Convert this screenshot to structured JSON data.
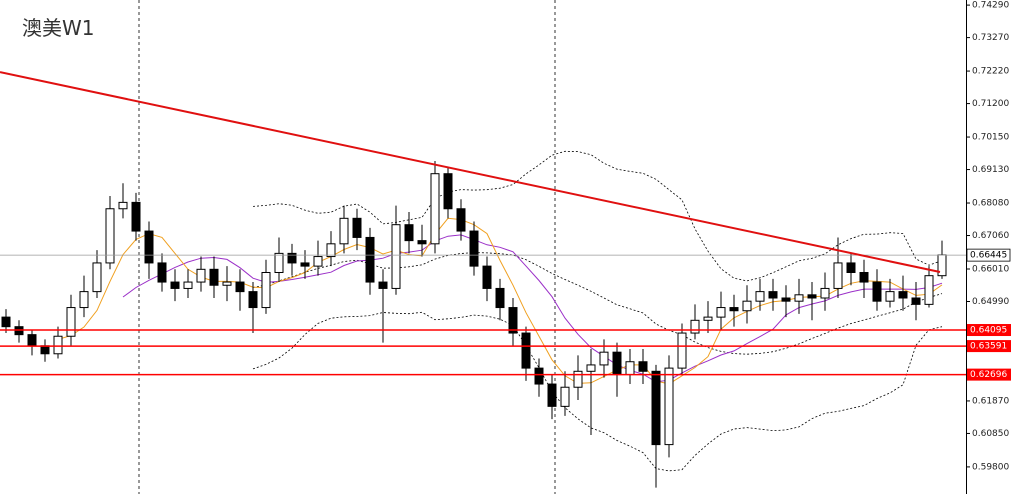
{
  "chart_data": {
    "type": "candlestick",
    "title": "澳美W1",
    "open": [
      0.645,
      0.642,
      0.6395,
      0.636,
      0.6335,
      0.639,
      0.648,
      0.653,
      0.662,
      0.679,
      0.681,
      0.672,
      0.662,
      0.656,
      0.654,
      0.656,
      0.66,
      0.655,
      0.656,
      0.653,
      0.648,
      0.659,
      0.665,
      0.662,
      0.661,
      0.664,
      0.668,
      0.676,
      0.67,
      0.656,
      0.654,
      0.674,
      0.669,
      0.668,
      0.69,
      0.679,
      0.672,
      0.661,
      0.654,
      0.648,
      0.64,
      0.629,
      0.624,
      0.617,
      0.623,
      0.628,
      0.63,
      0.634,
      0.627,
      0.631,
      0.628,
      0.605,
      0.629,
      0.64,
      0.644,
      0.645,
      0.648,
      0.647,
      0.65,
      0.653,
      0.651,
      0.65,
      0.652,
      0.651,
      0.654,
      0.662,
      0.659,
      0.656,
      0.65,
      0.653,
      0.651,
      0.649,
      0.658
    ],
    "high": [
      0.6475,
      0.644,
      0.641,
      0.638,
      0.642,
      0.652,
      0.658,
      0.666,
      0.683,
      0.687,
      0.684,
      0.675,
      0.665,
      0.66,
      0.66,
      0.664,
      0.664,
      0.661,
      0.66,
      0.656,
      0.663,
      0.67,
      0.668,
      0.666,
      0.669,
      0.672,
      0.68,
      0.679,
      0.673,
      0.66,
      0.68,
      0.678,
      0.674,
      0.694,
      0.692,
      0.682,
      0.675,
      0.664,
      0.657,
      0.651,
      0.642,
      0.632,
      0.627,
      0.628,
      0.633,
      0.635,
      0.638,
      0.637,
      0.635,
      0.635,
      0.63,
      0.633,
      0.643,
      0.649,
      0.65,
      0.653,
      0.652,
      0.655,
      0.657,
      0.657,
      0.655,
      0.657,
      0.656,
      0.659,
      0.67,
      0.665,
      0.663,
      0.66,
      0.657,
      0.658,
      0.656,
      0.661,
      0.669
    ],
    "low": [
      0.64,
      0.637,
      0.633,
      0.631,
      0.632,
      0.636,
      0.645,
      0.651,
      0.66,
      0.676,
      0.669,
      0.657,
      0.653,
      0.65,
      0.651,
      0.653,
      0.651,
      0.65,
      0.647,
      0.64,
      0.646,
      0.656,
      0.658,
      0.657,
      0.658,
      0.661,
      0.665,
      0.666,
      0.652,
      0.637,
      0.652,
      0.665,
      0.664,
      0.665,
      0.676,
      0.669,
      0.658,
      0.65,
      0.644,
      0.636,
      0.625,
      0.62,
      0.613,
      0.614,
      0.619,
      0.608,
      0.626,
      0.62,
      0.624,
      0.624,
      0.5915,
      0.601,
      0.627,
      0.638,
      0.64,
      0.641,
      0.642,
      0.643,
      0.647,
      0.647,
      0.645,
      0.646,
      0.644,
      0.647,
      0.651,
      0.655,
      0.651,
      0.647,
      0.648,
      0.647,
      0.644,
      0.648,
      0.657
    ],
    "close": [
      0.642,
      0.6395,
      0.636,
      0.6335,
      0.639,
      0.648,
      0.653,
      0.662,
      0.679,
      0.681,
      0.672,
      0.662,
      0.656,
      0.654,
      0.656,
      0.66,
      0.655,
      0.656,
      0.653,
      0.648,
      0.659,
      0.665,
      0.662,
      0.661,
      0.664,
      0.668,
      0.676,
      0.67,
      0.656,
      0.654,
      0.674,
      0.669,
      0.668,
      0.69,
      0.679,
      0.672,
      0.661,
      0.654,
      0.648,
      0.64,
      0.629,
      0.624,
      0.617,
      0.623,
      0.628,
      0.63,
      0.634,
      0.627,
      0.631,
      0.628,
      0.605,
      0.629,
      0.64,
      0.644,
      0.645,
      0.648,
      0.647,
      0.65,
      0.653,
      0.651,
      0.65,
      0.652,
      0.651,
      0.654,
      0.662,
      0.659,
      0.656,
      0.65,
      0.653,
      0.651,
      0.649,
      0.658,
      0.6645
    ],
    "up_color": "#ffffff",
    "down_color": "#000000",
    "ylim": [
      0.5895,
      0.7445
    ],
    "yticks": [
      {
        "value": 0.7429,
        "label": "0.74290"
      },
      {
        "value": 0.7327,
        "label": "0.73270"
      },
      {
        "value": 0.7222,
        "label": "0.72220"
      },
      {
        "value": 0.712,
        "label": "0.71200"
      },
      {
        "value": 0.7015,
        "label": "0.70150"
      },
      {
        "value": 0.6913,
        "label": "0.69130"
      },
      {
        "value": 0.6808,
        "label": "0.68080"
      },
      {
        "value": 0.6706,
        "label": "0.67060"
      },
      {
        "value": 0.6601,
        "label": "0.66010"
      },
      {
        "value": 0.6499,
        "label": "0.64990"
      },
      {
        "value": 0.6187,
        "label": "0.61870"
      },
      {
        "value": 0.6085,
        "label": "0.60850"
      },
      {
        "value": 0.598,
        "label": "0.59800"
      }
    ],
    "levels": [
      {
        "value": 0.64095,
        "label": "0.64095",
        "color": "#ff0000"
      },
      {
        "value": 0.63591,
        "label": "0.63591",
        "color": "#ff0000"
      },
      {
        "value": 0.62696,
        "label": "0.62696",
        "color": "#ff0000"
      }
    ],
    "current_price": {
      "value": 0.66445,
      "label": "0.66445",
      "color": "#999999"
    },
    "trend_line": {
      "start": 0.72188,
      "end": 0.65915,
      "color": "#e01010"
    }
  }
}
